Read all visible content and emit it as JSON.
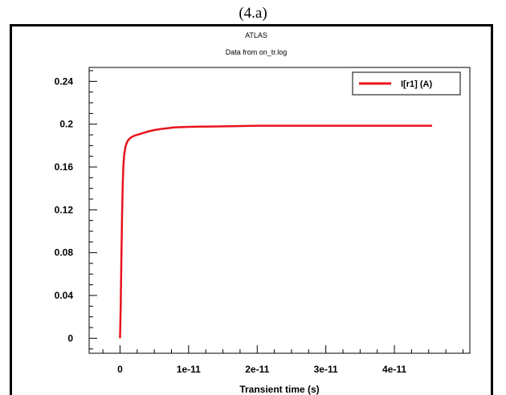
{
  "figure": {
    "caption": "(4.a)"
  },
  "chart_data": {
    "type": "line",
    "title": "ATLAS",
    "subtitle": "Data from on_tr.log",
    "xlabel": "Transient time (s)",
    "ylabel": "",
    "xlim": [
      -4.5e-12,
      5.1e-11
    ],
    "ylim": [
      -0.014,
      0.253
    ],
    "x_ticks": [
      0,
      1e-11,
      2e-11,
      3e-11,
      4e-11
    ],
    "x_tick_labels": [
      "0",
      "1e-11",
      "2e-11",
      "3e-11",
      "4e-11"
    ],
    "y_ticks": [
      0,
      0.04,
      0.08,
      0.12,
      0.16,
      0.2,
      0.24
    ],
    "y_tick_labels": [
      "0",
      "0.04",
      "0.08",
      "0.12",
      "0.16",
      "0.2",
      "0.24"
    ],
    "grid": false,
    "legend_position": "top-right",
    "series": [
      {
        "name": "I[r1] (A)",
        "color": "#e8141c",
        "x": [
          0,
          1e-13,
          2e-13,
          3e-13,
          4e-13,
          5e-13,
          6e-13,
          8e-13,
          1e-12,
          1.3e-12,
          1.7e-12,
          2.2e-12,
          3e-12,
          4e-12,
          5e-12,
          6e-12,
          8e-12,
          1e-11,
          1.5e-11,
          2e-11,
          3e-11,
          4e-11,
          4.55e-11
        ],
        "values": [
          0.0,
          0.03,
          0.075,
          0.115,
          0.145,
          0.162,
          0.171,
          0.179,
          0.183,
          0.186,
          0.188,
          0.1895,
          0.191,
          0.193,
          0.1945,
          0.1955,
          0.197,
          0.1975,
          0.198,
          0.1985,
          0.1985,
          0.1985,
          0.1985
        ]
      }
    ]
  }
}
